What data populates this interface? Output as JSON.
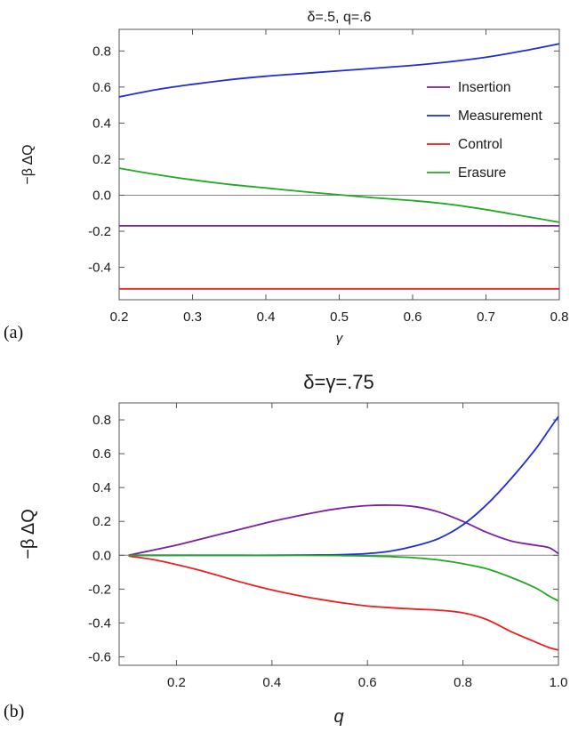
{
  "chart_data": [
    {
      "panel_label": "(a)",
      "type": "line",
      "title": "δ=.5, q=.6",
      "xlabel": "γ",
      "ylabel": "−β ΔQ",
      "xlim": [
        0.2,
        0.8
      ],
      "ylim": [
        -0.58,
        0.92
      ],
      "xticks": [
        "0.2",
        "0.3",
        "0.4",
        "0.5",
        "0.6",
        "0.7",
        "0.8"
      ],
      "yticks": [
        "-0.4",
        "-0.2",
        "0.0",
        "0.2",
        "0.4",
        "0.6",
        "0.8"
      ],
      "grid": false,
      "legend_position": "right",
      "series": [
        {
          "name": "Insertion",
          "color": "#7b1fa2",
          "x": [
            0.2,
            0.3,
            0.4,
            0.5,
            0.6,
            0.7,
            0.8
          ],
          "y": [
            -0.17,
            -0.17,
            -0.17,
            -0.17,
            -0.17,
            -0.17,
            -0.17
          ]
        },
        {
          "name": "Measurement",
          "color": "#1f2dd6",
          "x": [
            0.2,
            0.25,
            0.3,
            0.35,
            0.4,
            0.45,
            0.5,
            0.55,
            0.6,
            0.65,
            0.7,
            0.75,
            0.8
          ],
          "y": [
            0.545,
            0.585,
            0.615,
            0.64,
            0.66,
            0.675,
            0.69,
            0.705,
            0.72,
            0.74,
            0.765,
            0.8,
            0.84
          ]
        },
        {
          "name": "Control",
          "color": "#e82020",
          "x": [
            0.2,
            0.3,
            0.4,
            0.5,
            0.6,
            0.7,
            0.8
          ],
          "y": [
            -0.52,
            -0.52,
            -0.52,
            -0.52,
            -0.52,
            -0.52,
            -0.52
          ]
        },
        {
          "name": "Erasure",
          "color": "#22a822",
          "x": [
            0.2,
            0.25,
            0.3,
            0.35,
            0.4,
            0.45,
            0.5,
            0.55,
            0.6,
            0.65,
            0.7,
            0.75,
            0.8
          ],
          "y": [
            0.15,
            0.115,
            0.085,
            0.06,
            0.04,
            0.02,
            0.002,
            -0.015,
            -0.03,
            -0.05,
            -0.08,
            -0.115,
            -0.15
          ]
        }
      ]
    },
    {
      "panel_label": "(b)",
      "type": "line",
      "title": "δ=γ=.75",
      "xlabel": "q",
      "ylabel": "−β ΔQ",
      "xlim": [
        0.08,
        1.0
      ],
      "ylim": [
        -0.65,
        0.9
      ],
      "xticks": [
        "0.2",
        "0.4",
        "0.6",
        "0.8",
        "1.0"
      ],
      "yticks": [
        "-0.6",
        "-0.4",
        "-0.2",
        "0.0",
        "0.2",
        "0.4",
        "0.6",
        "0.8"
      ],
      "grid": false,
      "series": [
        {
          "name": "Insertion",
          "color": "#7b1fa2",
          "x": [
            0.1,
            0.15,
            0.2,
            0.25,
            0.3,
            0.35,
            0.4,
            0.45,
            0.5,
            0.55,
            0.6,
            0.65,
            0.7,
            0.75,
            0.8,
            0.85,
            0.9,
            0.95,
            0.98,
            1.0
          ],
          "y": [
            0.0,
            0.03,
            0.06,
            0.095,
            0.13,
            0.165,
            0.2,
            0.23,
            0.258,
            0.28,
            0.293,
            0.296,
            0.287,
            0.255,
            0.2,
            0.135,
            0.085,
            0.06,
            0.045,
            0.01
          ]
        },
        {
          "name": "Measurement",
          "color": "#1f2dd6",
          "x": [
            0.1,
            0.2,
            0.3,
            0.4,
            0.5,
            0.55,
            0.6,
            0.65,
            0.7,
            0.75,
            0.8,
            0.85,
            0.9,
            0.95,
            0.98,
            1.0
          ],
          "y": [
            0.0,
            0.0,
            0.0,
            0.0,
            0.002,
            0.004,
            0.01,
            0.025,
            0.055,
            0.1,
            0.18,
            0.3,
            0.45,
            0.62,
            0.74,
            0.82
          ]
        },
        {
          "name": "Control",
          "color": "#e82020",
          "x": [
            0.1,
            0.15,
            0.2,
            0.25,
            0.3,
            0.35,
            0.4,
            0.45,
            0.5,
            0.55,
            0.6,
            0.65,
            0.7,
            0.75,
            0.8,
            0.85,
            0.9,
            0.95,
            0.98,
            1.0
          ],
          "y": [
            -0.005,
            -0.025,
            -0.055,
            -0.09,
            -0.13,
            -0.17,
            -0.205,
            -0.235,
            -0.26,
            -0.282,
            -0.3,
            -0.31,
            -0.318,
            -0.325,
            -0.34,
            -0.38,
            -0.45,
            -0.51,
            -0.545,
            -0.56
          ]
        },
        {
          "name": "Erasure",
          "color": "#22a822",
          "x": [
            0.1,
            0.2,
            0.3,
            0.4,
            0.5,
            0.55,
            0.6,
            0.65,
            0.7,
            0.75,
            0.8,
            0.85,
            0.9,
            0.95,
            0.98,
            1.0
          ],
          "y": [
            0.0,
            0.0,
            0.0,
            0.0,
            -0.001,
            -0.002,
            -0.004,
            -0.008,
            -0.015,
            -0.028,
            -0.05,
            -0.08,
            -0.13,
            -0.19,
            -0.24,
            -0.27
          ]
        }
      ]
    }
  ]
}
